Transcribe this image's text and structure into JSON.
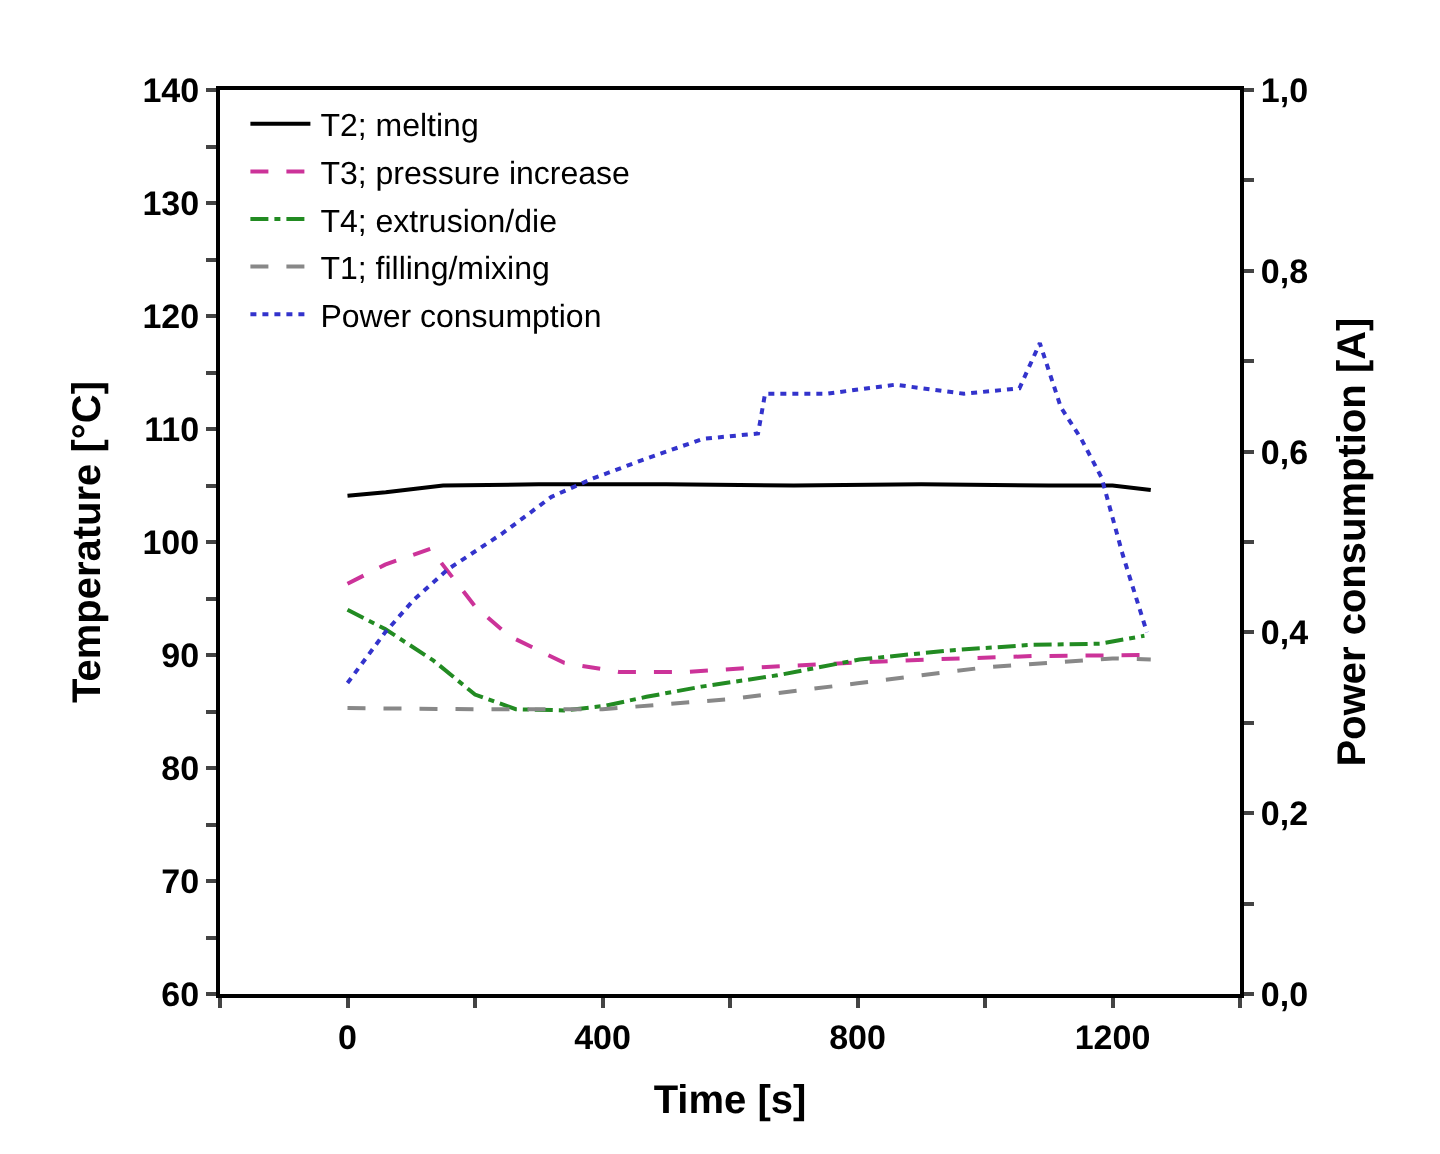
{
  "chart_data": {
    "type": "line",
    "xlabel": "Time [s]",
    "ylabel": "Temperature [°C]",
    "y2label": "Power consumption [A]",
    "xlim": [
      -200,
      1400
    ],
    "xticks": [
      {
        "value": -200,
        "label": null
      },
      0,
      {
        "value": 200,
        "label": null
      },
      400,
      {
        "value": 600,
        "label": null
      },
      800,
      {
        "value": 1000,
        "label": null
      },
      1200,
      {
        "value": 1400,
        "label": null
      }
    ],
    "ylim": [
      60,
      140
    ],
    "yticks": [
      60,
      {
        "value": 65,
        "label": null
      },
      70,
      {
        "value": 75,
        "label": null
      },
      80,
      {
        "value": 85,
        "label": null
      },
      90,
      {
        "value": 95,
        "label": null
      },
      100,
      {
        "value": 105,
        "label": null
      },
      110,
      {
        "value": 115,
        "label": null
      },
      120,
      {
        "value": 125,
        "label": null
      },
      130,
      {
        "value": 135,
        "label": null
      },
      140
    ],
    "y2lim": [
      0,
      1
    ],
    "y2ticks": [
      {
        "value": 0,
        "label": "0,0"
      },
      {
        "value": 0.1,
        "label": null
      },
      {
        "value": 0.2,
        "label": "0,2"
      },
      {
        "value": 0.3,
        "label": null
      },
      {
        "value": 0.4,
        "label": "0,4"
      },
      {
        "value": 0.5,
        "label": null
      },
      {
        "value": 0.6,
        "label": "0,6"
      },
      {
        "value": 0.7,
        "label": null
      },
      {
        "value": 0.8,
        "label": "0,8"
      },
      {
        "value": 0.9,
        "label": null
      },
      {
        "value": 1,
        "label": "1,0"
      }
    ],
    "legend": "top left",
    "marker": "none",
    "series": [
      {
        "name": "T2; melting",
        "color": "#000000",
        "line_style": "solid",
        "x": [
          0,
          60,
          150,
          300,
          500,
          700,
          900,
          1100,
          1200,
          1260
        ],
        "values": [
          104.1,
          104.4,
          105.0,
          105.1,
          105.1,
          105.0,
          105.1,
          105.0,
          105.0,
          104.6
        ]
      },
      {
        "name": "T3; pressure increase",
        "color": "#cc3399",
        "line_style": "dashed",
        "x": [
          0,
          59,
          130,
          200,
          253,
          340,
          426,
          534,
          641,
          749,
          911,
          1073,
          1250
        ],
        "values": [
          96.3,
          98.0,
          99.4,
          94.3,
          91.7,
          89.3,
          88.5,
          88.5,
          88.9,
          89.2,
          89.6,
          89.9,
          90.0
        ]
      },
      {
        "name": "T4; extrusion/die",
        "color": "#228b22",
        "line_style": "dashdot",
        "x": [
          0,
          59,
          135,
          200,
          264,
          340,
          404,
          469,
          555,
          674,
          803,
          943,
          1073,
          1180,
          1250
        ],
        "values": [
          94.0,
          92.3,
          89.5,
          86.5,
          85.2,
          85.1,
          85.5,
          86.3,
          87.2,
          88.2,
          89.6,
          90.4,
          90.9,
          91.0,
          91.7
        ]
      },
      {
        "name": "T1; filling/mixing",
        "color": "#888888",
        "line_style": "dashed",
        "x": [
          0,
          200,
          400,
          600,
          800,
          1000,
          1200,
          1260
        ],
        "values": [
          85.3,
          85.2,
          85.2,
          86.1,
          87.5,
          88.9,
          89.7,
          89.6
        ]
      },
      {
        "name": "Power consumption",
        "color": "#3333cc",
        "line_style": "dotted",
        "axis": "y2",
        "x": [
          0,
          59,
          104,
          158,
          244,
          320,
          384,
          460,
          557,
          644,
          655,
          751,
          859,
          967,
          1054,
          1086,
          1119,
          1151,
          1183,
          1216,
          1254
        ],
        "values": [
          0.344,
          0.4,
          0.436,
          0.47,
          0.51,
          0.55,
          0.57,
          0.59,
          0.614,
          0.62,
          0.664,
          0.664,
          0.674,
          0.664,
          0.67,
          0.72,
          0.649,
          0.614,
          0.571,
          0.486,
          0.4
        ]
      }
    ]
  }
}
